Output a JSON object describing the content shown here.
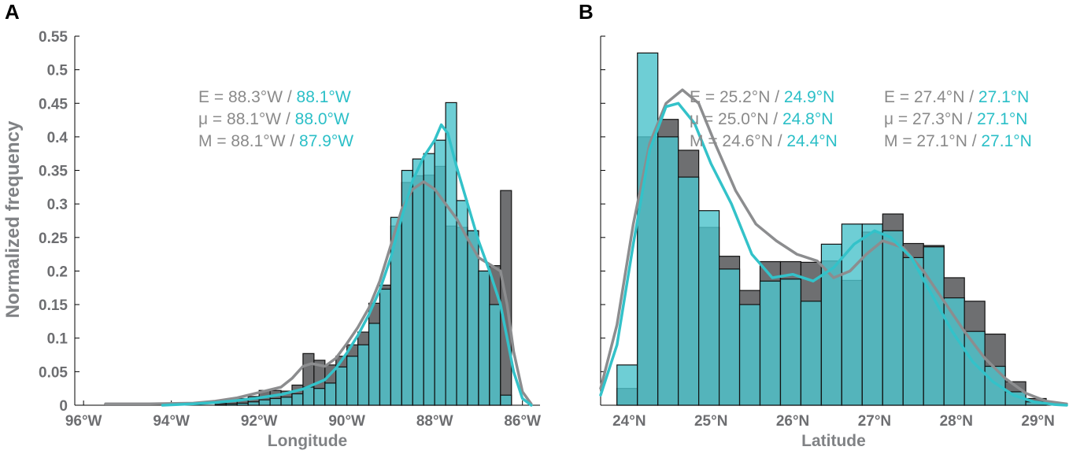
{
  "figure": {
    "y_axis_label": "Normalized frequency"
  },
  "colors": {
    "gray_fill": "#6e6f71",
    "gray_line": "#8c8d8f",
    "gray_text": "#8a8a8a",
    "cyan_fill": "#4ec3cc",
    "cyan_line": "#33c2c9",
    "cyan_text": "#2bbfc7",
    "overlap_fill": "#3fb3ad"
  },
  "chart_data": [
    {
      "panel_label": "A",
      "type": "bar",
      "subtype": "overlaid histogram with density curves",
      "xlabel": "Longitude",
      "ylabel": "Normalized frequency",
      "xlim": [
        96.2,
        85.6
      ],
      "ylim": [
        0,
        0.55
      ],
      "x_ticks": [
        {
          "value": 96,
          "label": "96°W"
        },
        {
          "value": 94,
          "label": "94°W"
        },
        {
          "value": 92,
          "label": "92°W"
        },
        {
          "value": 90,
          "label": "90°W"
        },
        {
          "value": 88,
          "label": "88°W"
        },
        {
          "value": 86,
          "label": "86°W"
        }
      ],
      "y_ticks": [
        {
          "value": 0,
          "label": "0"
        },
        {
          "value": 0.05,
          "label": "0.05"
        },
        {
          "value": 0.1,
          "label": "0.1"
        },
        {
          "value": 0.15,
          "label": "0.15"
        },
        {
          "value": 0.2,
          "label": "0.2"
        },
        {
          "value": 0.25,
          "label": "0.25"
        },
        {
          "value": 0.3,
          "label": "0.3"
        },
        {
          "value": 0.35,
          "label": "0.35"
        },
        {
          "value": 0.4,
          "label": "0.4"
        },
        {
          "value": 0.45,
          "label": "0.45"
        },
        {
          "value": 0.5,
          "label": "0.5"
        },
        {
          "value": 0.55,
          "label": "0.55"
        }
      ],
      "bin_edges": [
        93.0,
        92.75,
        92.5,
        92.25,
        92.0,
        91.75,
        91.5,
        91.25,
        91.0,
        90.75,
        90.5,
        90.25,
        90.0,
        89.75,
        89.5,
        89.25,
        89.0,
        88.75,
        88.5,
        88.25,
        88.0,
        87.75,
        87.5,
        87.25,
        87.0,
        86.75,
        86.5,
        86.25
      ],
      "series": [
        {
          "name": "gray",
          "values": [
            0.003,
            0.006,
            0.01,
            0.013,
            0.022,
            0.022,
            0.021,
            0.03,
            0.077,
            0.067,
            0.06,
            0.073,
            0.09,
            0.109,
            0.152,
            0.179,
            0.267,
            0.332,
            0.342,
            0.343,
            0.356,
            0.267,
            0.265,
            0.26,
            0.2,
            0.208,
            0.32
          ],
          "density": [
            [
              95.5,
              0.002
            ],
            [
              94.5,
              0.002
            ],
            [
              93.5,
              0.003
            ],
            [
              93.0,
              0.006
            ],
            [
              92.5,
              0.011
            ],
            [
              92.0,
              0.019
            ],
            [
              91.5,
              0.027
            ],
            [
              91.25,
              0.04
            ],
            [
              91.0,
              0.058
            ],
            [
              90.8,
              0.062
            ],
            [
              90.5,
              0.058
            ],
            [
              90.25,
              0.07
            ],
            [
              90.0,
              0.092
            ],
            [
              89.75,
              0.116
            ],
            [
              89.5,
              0.145
            ],
            [
              89.25,
              0.185
            ],
            [
              89.0,
              0.238
            ],
            [
              88.75,
              0.292
            ],
            [
              88.5,
              0.322
            ],
            [
              88.25,
              0.333
            ],
            [
              88.0,
              0.322
            ],
            [
              87.75,
              0.3
            ],
            [
              87.5,
              0.278
            ],
            [
              87.25,
              0.248
            ],
            [
              87.0,
              0.22
            ],
            [
              86.75,
              0.21
            ],
            [
              86.5,
              0.2
            ],
            [
              86.35,
              0.15
            ],
            [
              86.2,
              0.08
            ],
            [
              86.0,
              0.02
            ],
            [
              85.8,
              0.002
            ]
          ]
        },
        {
          "name": "cyan",
          "values": [
            0.001,
            0.002,
            0.003,
            0.005,
            0.008,
            0.01,
            0.012,
            0.017,
            0.027,
            0.025,
            0.033,
            0.057,
            0.073,
            0.09,
            0.122,
            0.173,
            0.28,
            0.35,
            0.367,
            0.375,
            0.395,
            0.451,
            0.305,
            0.26,
            0.2,
            0.15,
            0.015
          ],
          "density": [
            [
              94.2,
              0.0
            ],
            [
              93.5,
              0.002
            ],
            [
              93.0,
              0.004
            ],
            [
              92.5,
              0.007
            ],
            [
              92.0,
              0.011
            ],
            [
              91.5,
              0.016
            ],
            [
              91.0,
              0.024
            ],
            [
              90.5,
              0.038
            ],
            [
              90.25,
              0.055
            ],
            [
              90.0,
              0.078
            ],
            [
              89.75,
              0.104
            ],
            [
              89.5,
              0.135
            ],
            [
              89.25,
              0.172
            ],
            [
              89.0,
              0.22
            ],
            [
              88.75,
              0.28
            ],
            [
              88.5,
              0.335
            ],
            [
              88.25,
              0.37
            ],
            [
              88.0,
              0.395
            ],
            [
              87.85,
              0.418
            ],
            [
              87.7,
              0.405
            ],
            [
              87.5,
              0.355
            ],
            [
              87.25,
              0.3
            ],
            [
              87.0,
              0.245
            ],
            [
              86.75,
              0.2
            ],
            [
              86.5,
              0.15
            ],
            [
              86.35,
              0.1
            ],
            [
              86.2,
              0.05
            ],
            [
              86.0,
              0.01
            ],
            [
              85.8,
              0.0
            ]
          ]
        }
      ],
      "annotation_lines": [
        {
          "gray": "E = 88.3°W / ",
          "cyan": "88.1°W"
        },
        {
          "gray": "μ = 88.1°W / ",
          "cyan": " 88.0°W"
        },
        {
          "gray": "M = 88.1°W / ",
          "cyan": "87.9°W"
        }
      ]
    },
    {
      "panel_label": "B",
      "type": "bar",
      "subtype": "overlaid histogram with density curves",
      "xlabel": "Latitude",
      "xlim": [
        23.65,
        29.35
      ],
      "ylim": [
        0,
        0.55
      ],
      "x_ticks": [
        {
          "value": 24,
          "label": "24°N"
        },
        {
          "value": 25,
          "label": "25°N"
        },
        {
          "value": 26,
          "label": "26°N"
        },
        {
          "value": 27,
          "label": "27°N"
        },
        {
          "value": 28,
          "label": "28°N"
        },
        {
          "value": 29,
          "label": "29°N"
        }
      ],
      "bin_edges": [
        23.85,
        24.1,
        24.35,
        24.6,
        24.85,
        25.1,
        25.35,
        25.6,
        25.85,
        26.1,
        26.35,
        26.6,
        26.85,
        27.1,
        27.35,
        27.6,
        27.85,
        28.1,
        28.35,
        28.6,
        28.85,
        29.1
      ],
      "series": [
        {
          "name": "gray",
          "values": [
            0.025,
            0.4,
            0.426,
            0.38,
            0.265,
            0.222,
            0.171,
            0.214,
            0.214,
            0.213,
            0.215,
            0.186,
            0.258,
            0.285,
            0.241,
            0.238,
            0.19,
            0.155,
            0.106,
            0.035,
            0.01
          ],
          "density": [
            [
              23.65,
              0.025
            ],
            [
              23.85,
              0.12
            ],
            [
              24.05,
              0.27
            ],
            [
              24.25,
              0.39
            ],
            [
              24.45,
              0.45
            ],
            [
              24.65,
              0.47
            ],
            [
              24.85,
              0.45
            ],
            [
              25.05,
              0.39
            ],
            [
              25.3,
              0.32
            ],
            [
              25.55,
              0.27
            ],
            [
              25.8,
              0.245
            ],
            [
              26.05,
              0.225
            ],
            [
              26.3,
              0.215
            ],
            [
              26.5,
              0.19
            ],
            [
              26.7,
              0.2
            ],
            [
              26.9,
              0.225
            ],
            [
              27.1,
              0.245
            ],
            [
              27.35,
              0.235
            ],
            [
              27.6,
              0.2
            ],
            [
              27.85,
              0.155
            ],
            [
              28.1,
              0.11
            ],
            [
              28.35,
              0.07
            ],
            [
              28.6,
              0.04
            ],
            [
              28.85,
              0.018
            ],
            [
              29.1,
              0.006
            ],
            [
              29.35,
              0.002
            ]
          ]
        },
        {
          "name": "cyan",
          "values": [
            0.06,
            0.525,
            0.4,
            0.34,
            0.29,
            0.203,
            0.15,
            0.185,
            0.188,
            0.155,
            0.24,
            0.27,
            0.27,
            0.26,
            0.22,
            0.236,
            0.16,
            0.11,
            0.058,
            0.02,
            0.005
          ],
          "density": [
            [
              23.65,
              0.015
            ],
            [
              23.85,
              0.09
            ],
            [
              24.05,
              0.24
            ],
            [
              24.25,
              0.38
            ],
            [
              24.45,
              0.445
            ],
            [
              24.6,
              0.45
            ],
            [
              24.8,
              0.42
            ],
            [
              25.0,
              0.36
            ],
            [
              25.25,
              0.3
            ],
            [
              25.5,
              0.225
            ],
            [
              25.75,
              0.19
            ],
            [
              26.0,
              0.195
            ],
            [
              26.25,
              0.185
            ],
            [
              26.5,
              0.205
            ],
            [
              26.75,
              0.24
            ],
            [
              27.0,
              0.26
            ],
            [
              27.2,
              0.25
            ],
            [
              27.45,
              0.22
            ],
            [
              27.7,
              0.165
            ],
            [
              27.95,
              0.11
            ],
            [
              28.2,
              0.065
            ],
            [
              28.45,
              0.035
            ],
            [
              28.7,
              0.015
            ],
            [
              28.95,
              0.005
            ],
            [
              29.2,
              0.001
            ],
            [
              29.35,
              0.0
            ]
          ]
        }
      ],
      "annotation_groups": [
        [
          {
            "gray": "E = 25.2°N / ",
            "cyan": "24.9°N"
          },
          {
            "gray": "μ = 25.0°N / ",
            "cyan": " 24.8°N"
          },
          {
            "gray": "M = 24.6°N / ",
            "cyan": "24.4°N"
          }
        ],
        [
          {
            "gray": "E = 27.4°N / ",
            "cyan": "27.1°N"
          },
          {
            "gray": "μ = 27.3°N / ",
            "cyan": " 27.1°N"
          },
          {
            "gray": "M = 27.1°N / ",
            "cyan": "27.1°N"
          }
        ]
      ]
    }
  ]
}
